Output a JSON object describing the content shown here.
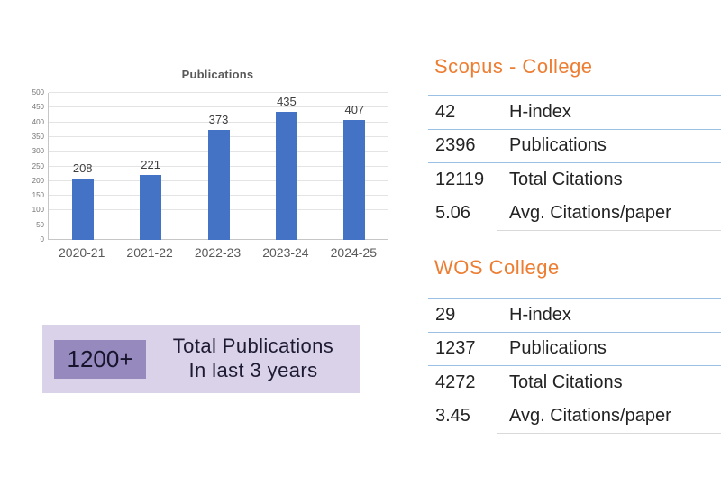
{
  "chart_data": [
    {
      "type": "bar",
      "title": "Publications",
      "categories": [
        "2020-21",
        "2021-22",
        "2022-23",
        "2023-24",
        "2024-25"
      ],
      "values": [
        208,
        221,
        373,
        435,
        407
      ],
      "xlabel": "",
      "ylabel": "",
      "ylim": [
        0,
        500
      ],
      "yticks": [
        0,
        50,
        100,
        150,
        200,
        250,
        300,
        350,
        400,
        450,
        500
      ],
      "grid": true,
      "legend": false,
      "bar_color": "#4472c4"
    },
    {
      "type": "table",
      "title": "Scopus - College",
      "rows": [
        [
          "42",
          "H-index"
        ],
        [
          "2396",
          "Publications"
        ],
        [
          "12119",
          "Total Citations"
        ],
        [
          "5.06",
          "Avg. Citations/paper"
        ]
      ]
    },
    {
      "type": "table",
      "title": "WOS College",
      "rows": [
        [
          "29",
          "H-index"
        ],
        [
          "1237",
          "Publications"
        ],
        [
          "4272",
          "Total Citations"
        ],
        [
          "3.45",
          "Avg. Citations/paper"
        ]
      ]
    }
  ],
  "banner": {
    "value": "1200+",
    "line1": "Total Publications",
    "line2": "In last 3 years"
  },
  "colors": {
    "bar_blue": "#4472c4",
    "heading_orange": "#ed7d31",
    "table_rule_blue": "#9cc0e4",
    "banner_bg": "#d9d2e8",
    "banner_badge_bg": "#9589bd"
  }
}
